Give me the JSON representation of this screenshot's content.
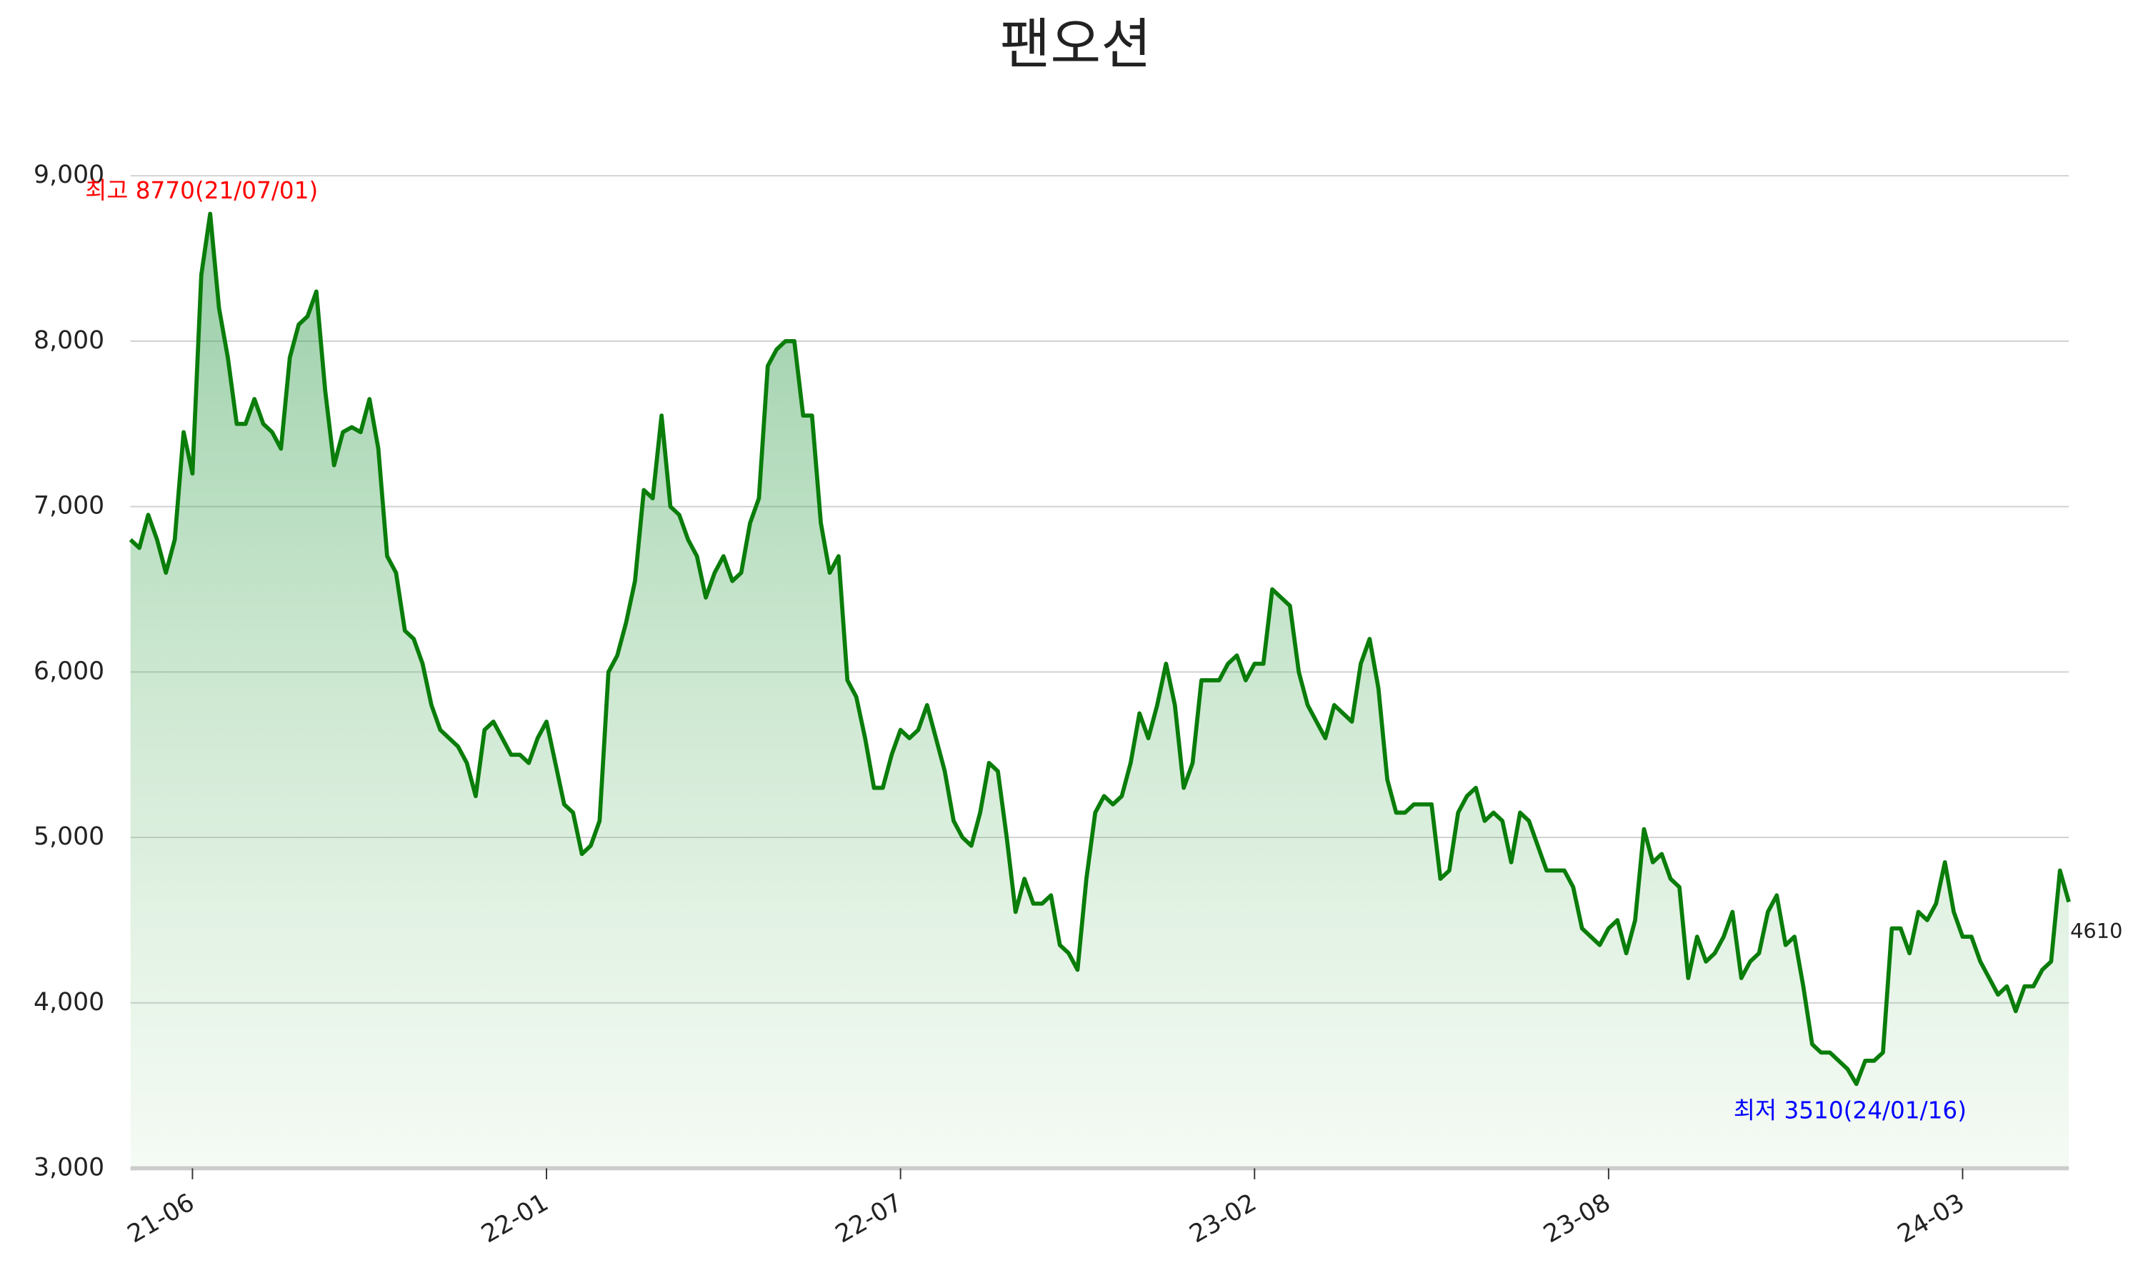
{
  "chart_data": {
    "type": "line",
    "title": "팬오션",
    "categories": [
      null,
      null,
      null,
      null,
      null,
      null,
      null,
      "21-06",
      null,
      null,
      null,
      null,
      null,
      null,
      null,
      null,
      null,
      null,
      null,
      null,
      null,
      null,
      null,
      null,
      null,
      null,
      null,
      null,
      null,
      null,
      null,
      null,
      null,
      null,
      null,
      null,
      null,
      null,
      null,
      null,
      null,
      null,
      null,
      null,
      null,
      null,
      null,
      "22-01",
      null,
      null,
      null,
      null,
      null,
      null,
      null,
      null,
      null,
      null,
      null,
      null,
      null,
      null,
      null,
      null,
      null,
      null,
      null,
      null,
      null,
      null,
      null,
      null,
      null,
      null,
      null,
      null,
      null,
      null,
      null,
      null,
      null,
      null,
      null,
      null,
      null,
      null,
      null,
      "22-07",
      null,
      null,
      null,
      null,
      null,
      null,
      null,
      null,
      null,
      null,
      null,
      null,
      null,
      null,
      null,
      null,
      null,
      null,
      null,
      null,
      null,
      null,
      null,
      null,
      null,
      null,
      null,
      null,
      null,
      null,
      null,
      null,
      null,
      null,
      null,
      null,
      null,
      null,
      null,
      "23-02",
      null,
      null,
      null,
      null,
      null,
      null,
      null,
      null,
      null,
      null,
      null,
      null,
      null,
      null,
      null,
      null,
      null,
      null,
      null,
      null,
      null,
      null,
      null,
      null,
      null,
      null,
      null,
      null,
      null,
      null,
      null,
      null,
      null,
      null,
      null,
      null,
      null,
      null,
      null,
      "23-08",
      null,
      null,
      null,
      null,
      null,
      null,
      null,
      null,
      null,
      null,
      null,
      null,
      null,
      null,
      null,
      null,
      null,
      null,
      null,
      null,
      null,
      null,
      null,
      null,
      null,
      null,
      null,
      null,
      null,
      null,
      null,
      null,
      null,
      null,
      null,
      null,
      null,
      null,
      null,
      "24-03",
      null,
      null,
      null,
      null,
      null,
      null,
      null,
      null,
      null,
      null,
      null,
      null
    ],
    "values": [
      6800,
      6750,
      6950,
      6800,
      6600,
      6800,
      7450,
      7200,
      8400,
      8770,
      8200,
      7900,
      7500,
      7500,
      7650,
      7500,
      7450,
      7350,
      7900,
      8100,
      8150,
      8300,
      7700,
      7250,
      7450,
      7480,
      7450,
      7650,
      7350,
      6700,
      6600,
      6250,
      6200,
      6050,
      5800,
      5650,
      5600,
      5550,
      5450,
      5250,
      5650,
      5700,
      5600,
      5500,
      5500,
      5450,
      5600,
      5700,
      5450,
      5200,
      5150,
      4900,
      4950,
      5100,
      6000,
      6100,
      6300,
      6550,
      7100,
      7050,
      7550,
      7000,
      6950,
      6800,
      6700,
      6450,
      6600,
      6700,
      6550,
      6600,
      6900,
      7050,
      7850,
      7950,
      8000,
      8000,
      7550,
      7550,
      6900,
      6600,
      6700,
      5950,
      5850,
      5600,
      5300,
      5300,
      5500,
      5650,
      5600,
      5650,
      5800,
      5600,
      5400,
      5100,
      5000,
      4950,
      5150,
      5450,
      5400,
      5000,
      4550,
      4750,
      4600,
      4600,
      4650,
      4350,
      4300,
      4200,
      4750,
      5150,
      5250,
      5200,
      5250,
      5450,
      5750,
      5600,
      5800,
      6050,
      5800,
      5300,
      5450,
      5950,
      5950,
      5950,
      6050,
      6100,
      5950,
      6050,
      6050,
      6500,
      6450,
      6400,
      6000,
      5800,
      5700,
      5600,
      5800,
      5750,
      5700,
      6050,
      6200,
      5900,
      5350,
      5150,
      5150,
      5200,
      5200,
      5200,
      4750,
      4800,
      5150,
      5250,
      5300,
      5100,
      5150,
      5100,
      4850,
      5150,
      5100,
      4950,
      4800,
      4800,
      4800,
      4700,
      4450,
      4400,
      4350,
      4450,
      4500,
      4300,
      4500,
      5050,
      4850,
      4900,
      4750,
      4700,
      4150,
      4400,
      4250,
      4300,
      4400,
      4550,
      4150,
      4250,
      4300,
      4550,
      4650,
      4350,
      4400,
      4100,
      3750,
      3700,
      3700,
      3650,
      3600,
      3510,
      3650,
      3650,
      3700,
      4450,
      4450,
      4300,
      4550,
      4500,
      4600,
      4850,
      4550,
      4400,
      4400,
      4250,
      4150,
      4050,
      4100,
      3950,
      4100,
      4100,
      4200,
      4250,
      4800,
      4610
    ],
    "color": "#0a7d0a",
    "ylim": [
      3000,
      9000
    ],
    "yticks": [
      {
        "value": 3000,
        "label": "3,000"
      },
      {
        "value": 4000,
        "label": "4,000"
      },
      {
        "value": 5000,
        "label": "5,000"
      },
      {
        "value": 6000,
        "label": "6,000"
      },
      {
        "value": 7000,
        "label": "7,000"
      },
      {
        "value": 8000,
        "label": "8,000"
      },
      {
        "value": 9000,
        "label": "9,000"
      }
    ],
    "grid": true,
    "annotations": {
      "high": "최고 8770(21/07/01)",
      "low": "최저 3510(24/01/16)",
      "last": "4610"
    }
  }
}
